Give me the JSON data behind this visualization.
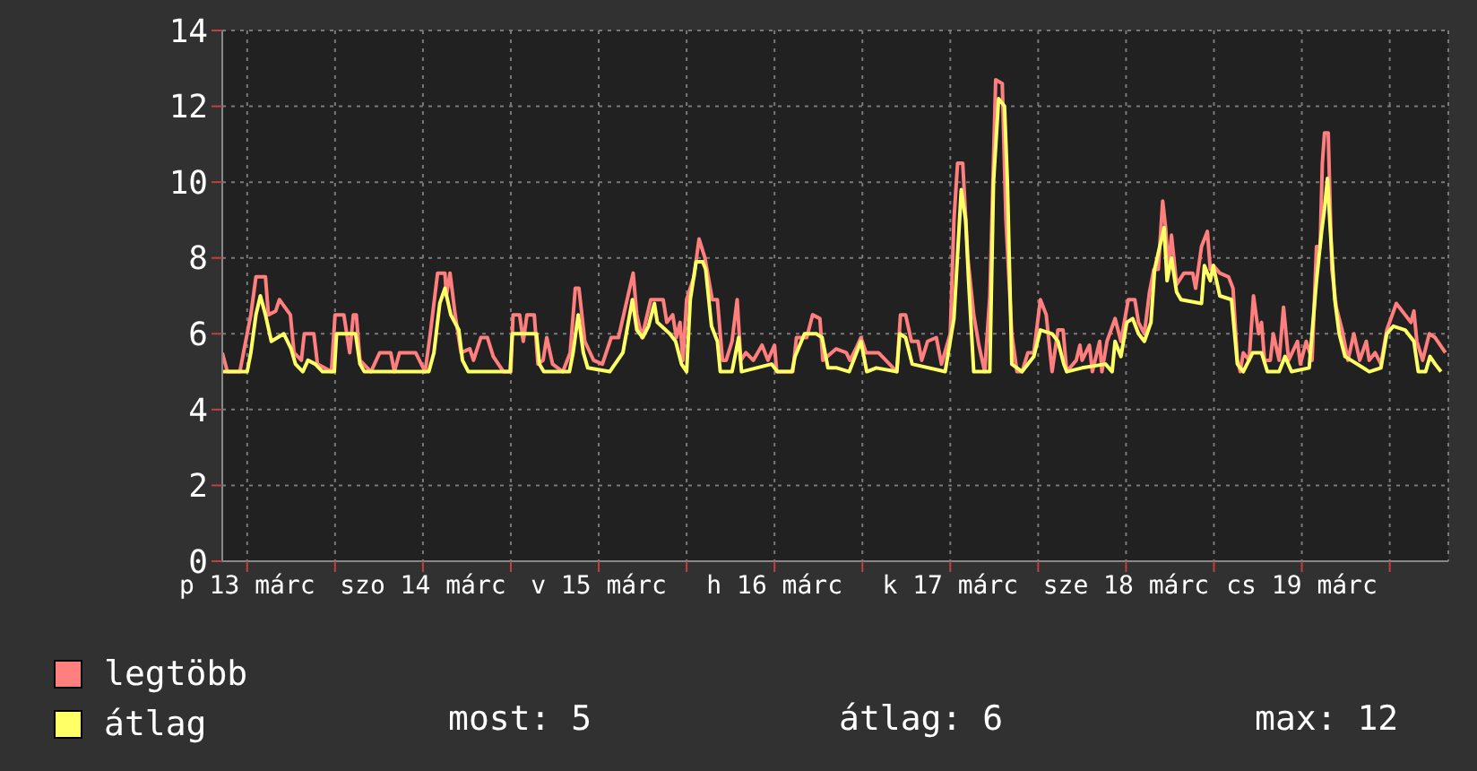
{
  "chart_data": {
    "type": "line",
    "legend": "bottom left",
    "grid": true,
    "marker": "none",
    "line_style": "solid",
    "xlim": [
      "--03-13T08:36",
      "--03-20T08:00"
    ],
    "ylim": [
      0,
      14
    ],
    "yticks": [
      0,
      2,
      4,
      6,
      8,
      10,
      12,
      14
    ],
    "xticks": [
      {
        "value": "--03-13T12:00",
        "label": "p 13 márc"
      },
      {
        "value": "--03-14T00:00",
        "label": null
      },
      {
        "value": "--03-14T12:00",
        "label": "szo 14 márc"
      },
      {
        "value": "--03-15T00:00",
        "label": null
      },
      {
        "value": "--03-15T12:00",
        "label": "v 15 márc"
      },
      {
        "value": "--03-16T00:00",
        "label": null
      },
      {
        "value": "--03-16T12:00",
        "label": "h 16 márc"
      },
      {
        "value": "--03-17T00:00",
        "label": null
      },
      {
        "value": "--03-17T12:00",
        "label": "k 17 márc"
      },
      {
        "value": "--03-18T00:00",
        "label": null
      },
      {
        "value": "--03-18T12:00",
        "label": "sze 18 márc"
      },
      {
        "value": "--03-19T00:00",
        "label": null
      },
      {
        "value": "--03-19T12:00",
        "label": "cs 19 márc"
      },
      {
        "value": "--03-20T00:00",
        "label": null
      }
    ],
    "annotations": [
      "most: 5",
      "átlag: 6",
      "max: 12"
    ],
    "series": [
      {
        "name": "legtöbb",
        "color": "#ff7f7f",
        "x": [
          "--03-13T08:36",
          "--03-13T09:18",
          "--03-13T11:00",
          "--03-13T11:30",
          "--03-13T12:30",
          "--03-13T13:12",
          "--03-13T14:30",
          "--03-13T14:54",
          "--03-13T15:54",
          "--03-13T16:24",
          "--03-13T17:54",
          "--03-13T18:24",
          "--03-13T19:24",
          "--03-13T19:48",
          "--03-13T21:06",
          "--03-13T21:36",
          "--03-13T23:30",
          "--03-14T00:00",
          "--03-14T01:12",
          "--03-14T02:00",
          "--03-14T02:30",
          "--03-14T02:54",
          "--03-14T03:24",
          "--03-14T04:54",
          "--03-14T06:06",
          "--03-14T07:36",
          "--03-14T08:06",
          "--03-14T08:48",
          "--03-14T11:00",
          "--03-14T12:18",
          "--03-14T13:00",
          "--03-14T14:00",
          "--03-14T15:00",
          "--03-14T15:12",
          "--03-14T15:42",
          "--03-14T16:24",
          "--03-14T17:12",
          "--03-14T18:24",
          "--03-14T18:54",
          "--03-14T19:54",
          "--03-14T20:48",
          "--03-14T21:36",
          "--03-14T23:00",
          "--03-15T00:00",
          "--03-15T00:18",
          "--03-15T01:12",
          "--03-15T01:42",
          "--03-15T02:12",
          "--03-15T03:12",
          "--03-15T03:42",
          "--03-15T04:24",
          "--03-15T04:54",
          "--03-15T05:42",
          "--03-15T07:06",
          "--03-15T08:06",
          "--03-15T08:48",
          "--03-15T09:18",
          "--03-15T10:06",
          "--03-15T11:18",
          "--03-15T12:30",
          "--03-15T13:42",
          "--03-15T14:42",
          "--03-15T16:42",
          "--03-15T17:12",
          "--03-15T17:54",
          "--03-15T19:06",
          "--03-15T20:48",
          "--03-15T21:18",
          "--03-15T22:06",
          "--03-15T22:36",
          "--03-15T23:06",
          "--03-15T23:30",
          "--03-16T00:00",
          "--03-16T01:00",
          "--03-16T01:42",
          "--03-16T02:30",
          "--03-16T03:30",
          "--03-16T04:12",
          "--03-16T04:54",
          "--03-16T05:24",
          "--03-16T06:12",
          "--03-16T06:54",
          "--03-16T07:24",
          "--03-16T08:06",
          "--03-16T09:06",
          "--03-16T10:18",
          "--03-16T11:06",
          "--03-16T12:00",
          "--03-16T12:18",
          "--03-16T14:30",
          "--03-16T15:00",
          "--03-16T16:24",
          "--03-16T17:12",
          "--03-16T18:12",
          "--03-16T18:36",
          "--03-16T20:24",
          "--03-16T21:48",
          "--03-16T22:18",
          "--03-16T23:06",
          "--03-16T23:48",
          "--03-17T00:30",
          "--03-17T02:12",
          "--03-17T04:42",
          "--03-17T05:12",
          "--03-17T05:54",
          "--03-17T06:42",
          "--03-17T07:36",
          "--03-17T08:06",
          "--03-17T08:54",
          "--03-17T10:06",
          "--03-17T10:48",
          "--03-17T12:00",
          "--03-17T12:30",
          "--03-17T13:00",
          "--03-17T13:42",
          "--03-17T14:24",
          "--03-17T15:12",
          "--03-17T15:54",
          "--03-17T16:42",
          "--03-17T17:24",
          "--03-17T18:12",
          "--03-17T19:06",
          "--03-17T19:36",
          "--03-17T20:24",
          "--03-17T21:06",
          "--03-17T21:48",
          "--03-17T22:36",
          "--03-17T23:24",
          "--03-18T00:18",
          "--03-18T01:06",
          "--03-18T01:54",
          "--03-18T02:42",
          "--03-18T03:24",
          "--03-18T03:54",
          "--03-18T05:12",
          "--03-18T05:42",
          "--03-18T06:00",
          "--03-18T07:00",
          "--03-18T07:24",
          "--03-18T08:24",
          "--03-18T08:42",
          "--03-18T09:24",
          "--03-18T10:30",
          "--03-18T11:18",
          "--03-18T12:18",
          "--03-18T13:12",
          "--03-18T13:42",
          "--03-18T14:30",
          "--03-18T15:12",
          "--03-18T15:48",
          "--03-18T16:24",
          "--03-18T17:00",
          "--03-18T17:24",
          "--03-18T17:48",
          "--03-18T18:12",
          "--03-18T18:54",
          "--03-18T19:54",
          "--03-18T21:06",
          "--03-18T21:30",
          "--03-18T22:18",
          "--03-18T23:06",
          "--03-18T23:30",
          "--03-18T23:54",
          "--03-19T00:48",
          "--03-19T02:00",
          "--03-19T02:36",
          "--03-19T03:12",
          "--03-19T03:36",
          "--03-19T04:00",
          "--03-19T04:48",
          "--03-19T05:24",
          "--03-19T06:06",
          "--03-19T06:30",
          "--03-19T06:54",
          "--03-19T07:42",
          "--03-19T08:06",
          "--03-19T08:54",
          "--03-19T09:30",
          "--03-19T10:12",
          "--03-19T11:24",
          "--03-19T11:48",
          "--03-19T12:36",
          "--03-19T13:24",
          "--03-19T14:00",
          "--03-19T14:30",
          "--03-19T14:48",
          "--03-19T15:06",
          "--03-19T15:36",
          "--03-19T16:06",
          "--03-19T16:42",
          "--03-19T17:30",
          "--03-19T18:18",
          "--03-19T19:06",
          "--03-19T19:54",
          "--03-19T20:48",
          "--03-19T21:12",
          "--03-19T22:00",
          "--03-19T22:48",
          "--03-19T23:36",
          "--03-20T00:54",
          "--03-20T02:06",
          "--03-20T02:54",
          "--03-20T03:18",
          "--03-20T03:42",
          "--03-20T04:30",
          "--03-20T05:24",
          "--03-20T06:12",
          "--03-20T07:36"
        ],
        "values": [
          5.5,
          5.0,
          5.0,
          5.5,
          6.5,
          7.5,
          7.5,
          6.5,
          6.6,
          6.9,
          6.5,
          5.5,
          5.3,
          6.0,
          6.0,
          5.2,
          5.0,
          6.5,
          6.5,
          5.5,
          6.5,
          6.5,
          5.3,
          5.0,
          5.5,
          5.5,
          5.0,
          5.5,
          5.5,
          5.0,
          6.0,
          7.6,
          7.6,
          7.0,
          7.6,
          6.5,
          5.5,
          5.6,
          5.3,
          5.9,
          5.9,
          5.4,
          5.0,
          5.0,
          6.5,
          6.5,
          5.8,
          6.5,
          6.5,
          5.2,
          5.3,
          5.9,
          5.2,
          5.0,
          5.5,
          7.2,
          7.2,
          5.8,
          5.3,
          5.2,
          5.9,
          5.9,
          7.6,
          6.5,
          5.9,
          6.9,
          6.9,
          6.3,
          6.5,
          5.9,
          6.3,
          5.3,
          6.9,
          7.5,
          8.5,
          8.0,
          6.9,
          6.9,
          5.3,
          5.3,
          5.8,
          6.9,
          5.3,
          5.5,
          5.3,
          5.7,
          5.3,
          5.7,
          5.0,
          5.0,
          5.9,
          5.9,
          6.5,
          6.4,
          5.3,
          5.6,
          5.5,
          5.3,
          5.6,
          5.9,
          5.5,
          5.5,
          5.0,
          6.5,
          6.5,
          5.8,
          5.8,
          5.3,
          5.8,
          5.9,
          5.2,
          6.0,
          9.0,
          10.5,
          10.5,
          8.0,
          6.5,
          5.7,
          5.0,
          7.0,
          12.7,
          12.6,
          9.0,
          6.0,
          5.0,
          5.0,
          5.5,
          5.5,
          6.9,
          6.5,
          5.0,
          6.1,
          6.1,
          5.0,
          5.3,
          5.7,
          5.3,
          5.7,
          5.0,
          5.8,
          5.0,
          5.8,
          6.4,
          5.8,
          6.9,
          6.9,
          6.3,
          6.0,
          7.1,
          7.7,
          7.7,
          9.5,
          8.8,
          7.7,
          8.6,
          7.3,
          7.6,
          7.6,
          7.2,
          8.3,
          8.7,
          7.7,
          7.8,
          7.6,
          7.5,
          7.2,
          5.3,
          5.0,
          5.5,
          5.3,
          7.0,
          6.0,
          6.3,
          5.3,
          5.3,
          6.0,
          5.3,
          6.7,
          5.3,
          5.8,
          5.2,
          5.8,
          5.3,
          8.3,
          8.3,
          10.5,
          11.3,
          11.3,
          7.7,
          6.7,
          6.1,
          5.3,
          6.0,
          5.3,
          5.8,
          5.3,
          5.5,
          5.2,
          6.1,
          6.8,
          6.5,
          6.3,
          6.6,
          5.8,
          5.3,
          6.0,
          5.9,
          5.5
        ]
      },
      {
        "name": "átlag",
        "color": "#ffff66",
        "x": [
          "--03-13T08:36",
          "--03-13T12:00",
          "--03-13T12:30",
          "--03-13T13:12",
          "--03-13T13:48",
          "--03-13T14:30",
          "--03-13T15:18",
          "--03-13T17:00",
          "--03-13T18:00",
          "--03-13T18:36",
          "--03-13T19:36",
          "--03-13T20:18",
          "--03-13T21:18",
          "--03-13T22:18",
          "--03-13T23:54",
          "--03-14T00:12",
          "--03-14T02:48",
          "--03-14T03:24",
          "--03-14T04:00",
          "--03-14T12:48",
          "--03-14T13:30",
          "--03-14T14:18",
          "--03-14T15:00",
          "--03-14T15:48",
          "--03-14T16:54",
          "--03-14T17:24",
          "--03-14T18:12",
          "--03-14T23:54",
          "--03-15T00:12",
          "--03-15T03:30",
          "--03-15T03:54",
          "--03-15T04:30",
          "--03-15T08:00",
          "--03-15T08:30",
          "--03-15T09:12",
          "--03-15T09:54",
          "--03-15T10:30",
          "--03-15T13:30",
          "--03-15T15:18",
          "--03-15T16:36",
          "--03-15T17:12",
          "--03-15T18:00",
          "--03-15T18:48",
          "--03-15T19:36",
          "--03-15T20:00",
          "--03-15T21:42",
          "--03-15T22:30",
          "--03-15T23:18",
          "--03-16T00:00",
          "--03-16T00:30",
          "--03-16T01:18",
          "--03-16T02:12",
          "--03-16T02:36",
          "--03-16T03:24",
          "--03-16T04:12",
          "--03-16T04:36",
          "--03-16T06:12",
          "--03-16T07:06",
          "--03-16T07:30",
          "--03-16T11:36",
          "--03-16T12:24",
          "--03-16T14:24",
          "--03-16T14:48",
          "--03-16T16:06",
          "--03-16T17:42",
          "--03-16T18:30",
          "--03-16T19:18",
          "--03-16T20:30",
          "--03-16T22:12",
          "--03-16T23:48",
          "--03-17T00:36",
          "--03-17T01:54",
          "--03-17T04:42",
          "--03-17T05:06",
          "--03-17T05:54",
          "--03-17T06:48",
          "--03-17T11:18",
          "--03-17T12:30",
          "--03-17T13:30",
          "--03-17T14:06",
          "--03-17T14:30",
          "--03-17T15:12",
          "--03-17T17:24",
          "--03-17T17:54",
          "--03-17T18:36",
          "--03-17T19:24",
          "--03-17T19:48",
          "--03-17T20:24",
          "--03-17T21:48",
          "--03-17T23:24",
          "--03-18T00:18",
          "--03-18T01:54",
          "--03-18T02:42",
          "--03-18T03:30",
          "--03-18T03:54",
          "--03-18T06:00",
          "--03-18T09:12",
          "--03-18T10:06",
          "--03-18T10:30",
          "--03-18T11:18",
          "--03-18T12:06",
          "--03-18T12:54",
          "--03-18T13:42",
          "--03-18T14:30",
          "--03-18T15:24",
          "--03-18T15:54",
          "--03-18T16:36",
          "--03-18T17:12",
          "--03-18T17:36",
          "--03-18T18:12",
          "--03-18T18:54",
          "--03-18T19:30",
          "--03-18T22:18",
          "--03-18T22:42",
          "--03-18T23:30",
          "--03-18T23:54",
          "--03-19T00:48",
          "--03-19T02:24",
          "--03-19T03:12",
          "--03-19T04:00",
          "--03-19T05:18",
          "--03-19T06:30",
          "--03-19T07:18",
          "--03-19T08:54",
          "--03-19T09:42",
          "--03-19T10:36",
          "--03-19T13:00",
          "--03-19T14:00",
          "--03-19T14:42",
          "--03-19T15:06",
          "--03-19T15:30",
          "--03-19T15:54",
          "--03-19T16:30",
          "--03-19T17:06",
          "--03-19T17:54",
          "--03-19T21:12",
          "--03-19T22:48",
          "--03-19T23:36",
          "--03-20T00:30",
          "--03-20T02:06",
          "--03-20T03:18",
          "--03-20T03:54",
          "--03-20T04:54",
          "--03-20T05:30",
          "--03-20T06:12",
          "--03-20T07:00"
        ],
        "values": [
          5.0,
          5.0,
          5.5,
          6.5,
          7.0,
          6.5,
          5.8,
          6.0,
          5.6,
          5.2,
          5.0,
          5.3,
          5.2,
          5.0,
          5.0,
          6.0,
          6.0,
          5.2,
          5.0,
          5.0,
          5.5,
          6.8,
          7.2,
          6.5,
          6.1,
          5.3,
          5.0,
          5.0,
          6.0,
          6.0,
          5.2,
          5.0,
          5.0,
          5.5,
          6.5,
          5.5,
          5.1,
          5.0,
          5.5,
          6.9,
          6.1,
          5.9,
          6.2,
          6.8,
          6.3,
          6.0,
          5.8,
          5.2,
          5.0,
          6.9,
          7.9,
          7.9,
          7.7,
          6.2,
          5.8,
          5.0,
          5.0,
          5.9,
          5.0,
          5.2,
          5.0,
          5.0,
          5.4,
          6.0,
          6.0,
          5.9,
          5.1,
          5.1,
          5.0,
          5.8,
          5.0,
          5.1,
          5.0,
          6.0,
          5.9,
          5.2,
          5.0,
          6.4,
          9.8,
          9.0,
          7.4,
          5.0,
          5.0,
          10.0,
          12.2,
          12.0,
          10.0,
          5.2,
          5.0,
          5.4,
          6.1,
          6.0,
          5.8,
          5.2,
          5.0,
          5.1,
          5.2,
          5.0,
          5.8,
          5.4,
          6.3,
          6.4,
          6.0,
          5.8,
          6.3,
          7.7,
          8.3,
          8.8,
          7.4,
          8.0,
          7.1,
          6.9,
          6.8,
          7.8,
          7.4,
          7.8,
          7.0,
          6.9,
          5.2,
          5.0,
          5.5,
          5.5,
          5.0,
          5.0,
          5.4,
          5.0,
          5.1,
          7.4,
          8.7,
          9.3,
          10.1,
          8.7,
          6.9,
          6.0,
          5.4,
          5.0,
          5.1,
          6.0,
          6.2,
          6.1,
          5.8,
          5.0,
          5.0,
          5.4,
          5.2,
          5.0
        ]
      }
    ]
  }
}
